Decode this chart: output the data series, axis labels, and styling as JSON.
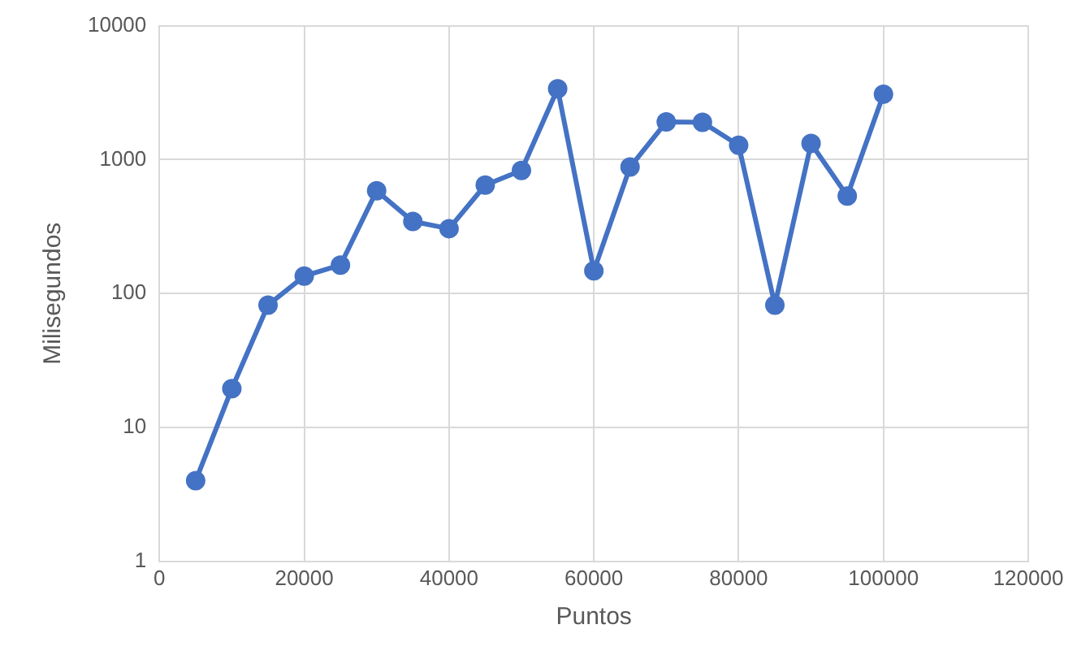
{
  "chart_data": {
    "type": "line",
    "xlabel": "Puntos",
    "ylabel": "Milisegundos",
    "x": [
      5000,
      10000,
      15000,
      20000,
      25000,
      30000,
      35000,
      40000,
      45000,
      50000,
      55000,
      60000,
      65000,
      70000,
      75000,
      80000,
      85000,
      90000,
      95000,
      100000
    ],
    "series": [
      {
        "color": "#4472c4",
        "values": [
          4,
          19.5,
          82,
          135,
          163,
          585,
          345,
          305,
          645,
          830,
          3380,
          148,
          880,
          1910,
          1900,
          1280,
          82,
          1320,
          535,
          3080
        ]
      }
    ],
    "xlim": [
      0,
      120000
    ],
    "xticks": [
      0,
      20000,
      40000,
      60000,
      80000,
      100000,
      120000
    ],
    "ylim": [
      1,
      10000
    ],
    "yticks": [
      1,
      10,
      100,
      1000,
      10000
    ],
    "log": "y",
    "grid": true,
    "legend": false,
    "marker": "circle",
    "line_style": "solid"
  }
}
